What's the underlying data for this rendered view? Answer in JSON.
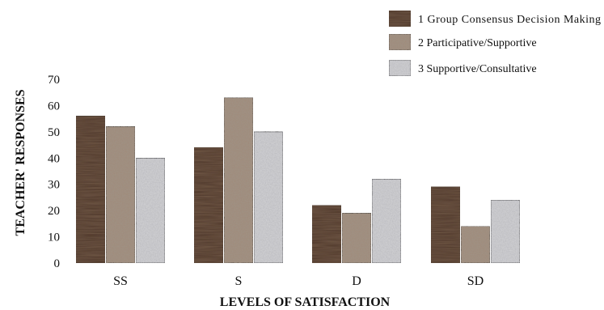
{
  "chart_data": {
    "type": "bar",
    "title": "",
    "xlabel": "LEVELS OF SATISFACTION",
    "ylabel": "TEACHER' RESPONSES",
    "ylim": [
      0,
      70
    ],
    "yticks": [
      0,
      10,
      20,
      30,
      40,
      50,
      60,
      70
    ],
    "grid": false,
    "legend_position": "top-right",
    "categories": [
      "SS",
      "S",
      "D",
      "SD"
    ],
    "series": [
      {
        "name": "1 Group Consensus Decision Making",
        "values": [
          56,
          44,
          22,
          29
        ],
        "color": "#4a3326",
        "texture": "dark-wood"
      },
      {
        "name": "2 Participative/Supportive",
        "values": [
          52,
          63,
          19,
          14
        ],
        "color": "#a08c7c",
        "texture": "tan-granite"
      },
      {
        "name": "3 Supportive/Consultative",
        "values": [
          40,
          50,
          32,
          24
        ],
        "color": "#cfcfd2",
        "texture": "grey-granite"
      }
    ]
  }
}
